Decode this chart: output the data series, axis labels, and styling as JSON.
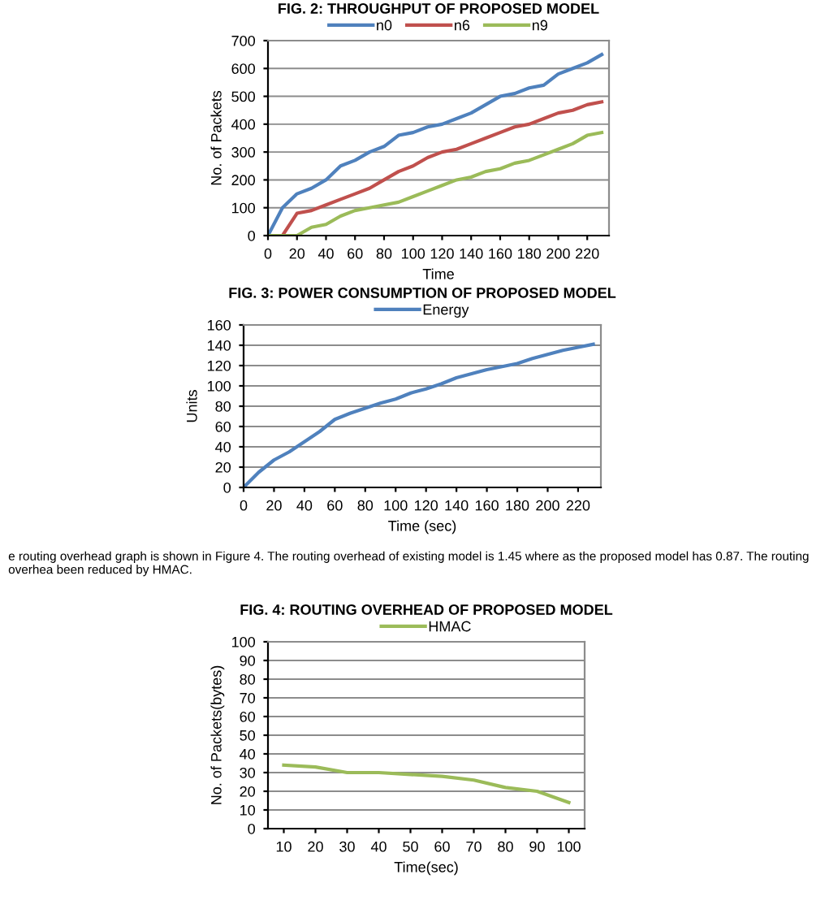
{
  "chart_data": [
    {
      "type": "line",
      "title": "FIG. 2: THROUGHPUT OF PROPOSED MODEL",
      "xlabel": "Time",
      "ylabel": "No. of Packets",
      "x": [
        0,
        10,
        20,
        30,
        40,
        50,
        60,
        70,
        80,
        90,
        100,
        110,
        120,
        130,
        140,
        150,
        160,
        170,
        180,
        190,
        200,
        210,
        220,
        230
      ],
      "xlim": [
        0,
        235
      ],
      "xticks": [
        0,
        20,
        40,
        60,
        80,
        100,
        120,
        140,
        160,
        180,
        200,
        220
      ],
      "ylim": [
        0,
        700
      ],
      "yticks": [
        0,
        100,
        200,
        300,
        400,
        500,
        600,
        700
      ],
      "grid": "y",
      "legend": "top",
      "series": [
        {
          "name": "n0",
          "color": "#4f81bd",
          "values": [
            0,
            100,
            150,
            170,
            200,
            250,
            270,
            300,
            320,
            360,
            370,
            390,
            400,
            420,
            440,
            470,
            500,
            510,
            530,
            540,
            580,
            600,
            620,
            650
          ]
        },
        {
          "name": "n6",
          "color": "#c0504d",
          "values": [
            0,
            0,
            80,
            90,
            110,
            130,
            150,
            170,
            200,
            230,
            250,
            280,
            300,
            310,
            330,
            350,
            370,
            390,
            400,
            420,
            440,
            450,
            470,
            480
          ]
        },
        {
          "name": "n9",
          "color": "#9bbb59",
          "values": [
            0,
            0,
            0,
            30,
            40,
            70,
            90,
            100,
            110,
            120,
            140,
            160,
            180,
            200,
            210,
            230,
            240,
            260,
            270,
            290,
            310,
            330,
            360,
            370
          ]
        }
      ]
    },
    {
      "type": "line",
      "title": "FIG. 3: POWER CONSUMPTION OF PROPOSED MODEL",
      "xlabel": "Time (sec)",
      "ylabel": "Units",
      "x": [
        0,
        10,
        20,
        30,
        40,
        50,
        60,
        70,
        80,
        90,
        100,
        110,
        120,
        130,
        140,
        150,
        160,
        170,
        180,
        190,
        200,
        210,
        220,
        230
      ],
      "xlim": [
        0,
        235
      ],
      "xticks": [
        0,
        20,
        40,
        60,
        80,
        100,
        120,
        140,
        160,
        180,
        200,
        220
      ],
      "ylim": [
        0,
        160
      ],
      "yticks": [
        0,
        20,
        40,
        60,
        80,
        100,
        120,
        140,
        160
      ],
      "grid": "y",
      "legend": "top",
      "series": [
        {
          "name": "Energy",
          "color": "#4f81bd",
          "values": [
            0,
            15,
            27,
            35,
            45,
            55,
            67,
            73,
            78,
            83,
            87,
            93,
            97,
            102,
            108,
            112,
            116,
            119,
            122,
            127,
            131,
            135,
            138,
            141
          ]
        }
      ]
    },
    {
      "type": "line",
      "title": "FIG. 4: ROUTING OVERHEAD OF PROPOSED MODEL",
      "xlabel": "Time(sec)",
      "ylabel": "No. of Packets(bytes)",
      "categories": [
        "10",
        "20",
        "30",
        "40",
        "50",
        "60",
        "70",
        "80",
        "90",
        "100"
      ],
      "ylim": [
        0,
        100
      ],
      "yticks": [
        0,
        10,
        20,
        30,
        40,
        50,
        60,
        70,
        80,
        90,
        100
      ],
      "grid": "y",
      "legend": "top",
      "annotations": [
        "e routing overhead graph is shown in Figure 4. The routing overhead of existing model is 1.45 where as the proposed model has 0.87. The routing overhea been reduced by HMAC."
      ],
      "series": [
        {
          "name": "HMAC",
          "color": "#9bbb59",
          "values": [
            34,
            33,
            30,
            30,
            29,
            28,
            26,
            22,
            20,
            14
          ]
        }
      ]
    }
  ]
}
